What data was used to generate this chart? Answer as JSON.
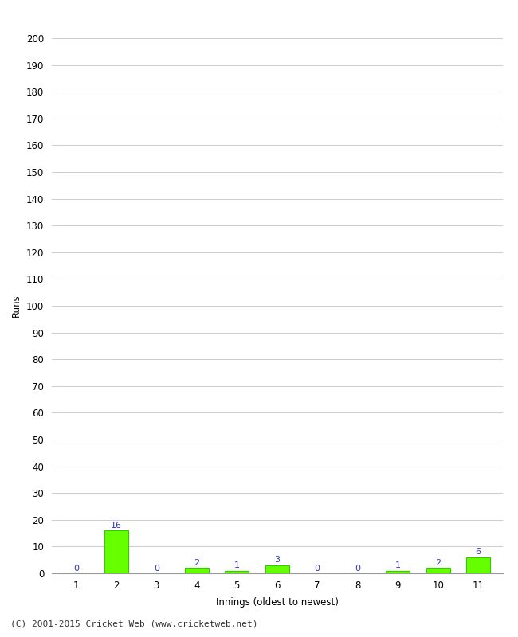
{
  "innings": [
    1,
    2,
    3,
    4,
    5,
    6,
    7,
    8,
    9,
    10,
    11
  ],
  "runs": [
    0,
    16,
    0,
    2,
    1,
    3,
    0,
    0,
    1,
    2,
    6
  ],
  "bar_color": "#66ff00",
  "bar_edge_color": "#33cc00",
  "label_color": "#3333bb",
  "ylabel": "Runs",
  "xlabel": "Innings (oldest to newest)",
  "footer": "(C) 2001-2015 Cricket Web (www.cricketweb.net)",
  "ylim": [
    0,
    200
  ],
  "ytick_step": 10,
  "background_color": "#ffffff",
  "grid_color": "#cccccc",
  "label_fontsize": 8,
  "axis_fontsize": 8.5,
  "footer_fontsize": 8
}
